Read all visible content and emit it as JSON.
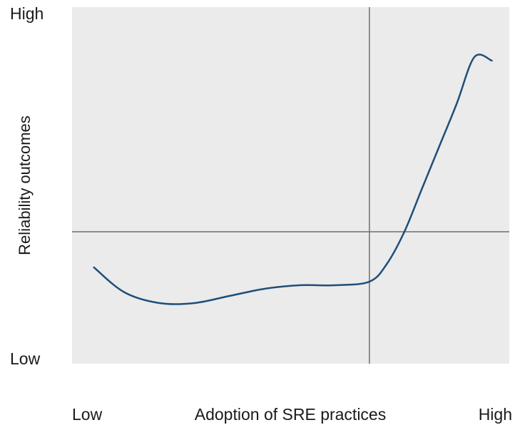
{
  "chart_data": {
    "type": "line",
    "title": "",
    "xlabel": "Adoption of SRE practices",
    "ylabel": "Reliability outcomes",
    "x_tick_labels": {
      "low": "Low",
      "high": "High"
    },
    "y_tick_labels": {
      "low": "Low",
      "high": "High"
    },
    "xlim": [
      0,
      1
    ],
    "ylim": [
      0,
      1
    ],
    "reference_lines": {
      "x": 0.68,
      "y": 0.37
    },
    "grid": false,
    "legend": "none",
    "series": [
      {
        "x": [
          0.05,
          0.12,
          0.2,
          0.28,
          0.36,
          0.44,
          0.52,
          0.6,
          0.68,
          0.72,
          0.76,
          0.8,
          0.84,
          0.88,
          0.92,
          0.96
        ],
        "y": [
          0.27,
          0.2,
          0.17,
          0.17,
          0.19,
          0.21,
          0.22,
          0.22,
          0.23,
          0.28,
          0.37,
          0.49,
          0.61,
          0.73,
          0.86,
          0.85
        ],
        "color": "#1f4e79"
      }
    ],
    "colors": {
      "plot_background": "#ebebeb",
      "reference_line": "#6e6e6e",
      "curve": "#1f4e79"
    }
  }
}
